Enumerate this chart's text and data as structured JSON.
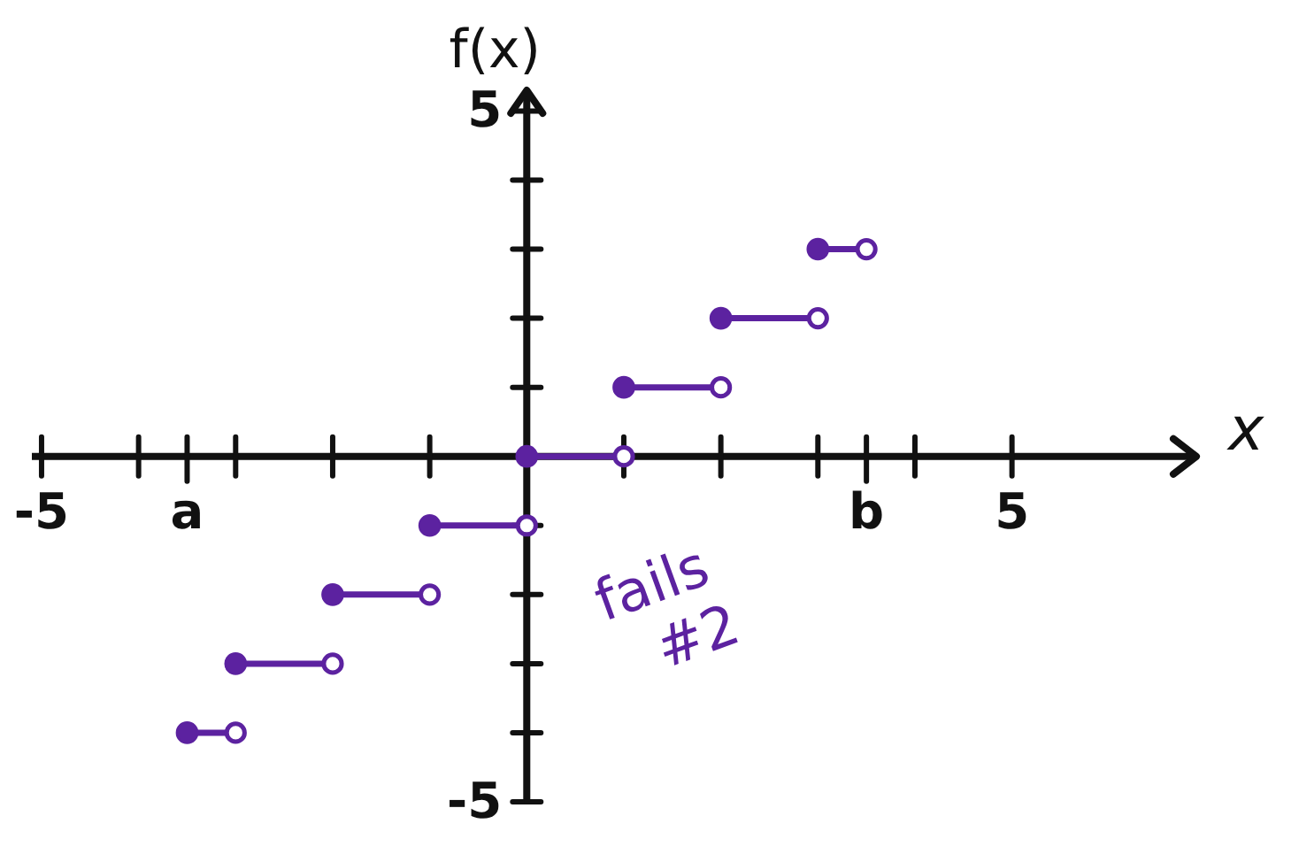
{
  "chart_data": {
    "type": "line",
    "xlabel": "x",
    "ylabel": "f(x)",
    "annotations": [
      "fails #2"
    ],
    "xlim": [
      -5.1,
      6.9
    ],
    "ylim": [
      -5,
      5.3
    ],
    "xticks": [
      -5,
      {
        "value": -4,
        "label": null
      },
      {
        "value": -3.5,
        "label": "a"
      },
      {
        "value": -3,
        "label": null
      },
      {
        "value": -2,
        "label": null
      },
      {
        "value": -1,
        "label": null
      },
      {
        "value": 1,
        "label": null
      },
      {
        "value": 2,
        "label": null
      },
      {
        "value": 3,
        "label": null
      },
      {
        "value": 3.5,
        "label": "b"
      },
      {
        "value": 4,
        "label": null
      },
      5
    ],
    "yticks": [
      -5,
      {
        "value": -4,
        "label": null
      },
      {
        "value": -3,
        "label": null
      },
      {
        "value": -2,
        "label": null
      },
      {
        "value": -1,
        "label": null
      },
      {
        "value": 1,
        "label": null
      },
      {
        "value": 2,
        "label": null
      },
      {
        "value": 3,
        "label": null
      },
      {
        "value": 4,
        "label": null
      },
      5
    ],
    "marker": "circle",
    "line_style": "solid",
    "series": [
      {
        "color": "#5c22a0",
        "x": [
          -3.5,
          -3
        ],
        "values": [
          -4,
          -4
        ]
      },
      {
        "color": "#5c22a0",
        "x": [
          -3,
          -2
        ],
        "values": [
          -3,
          -3
        ]
      },
      {
        "color": "#5c22a0",
        "x": [
          -2,
          -1
        ],
        "values": [
          -2,
          -2
        ]
      },
      {
        "color": "#5c22a0",
        "x": [
          -1,
          0
        ],
        "values": [
          -1,
          -1
        ]
      },
      {
        "color": "#5c22a0",
        "x": [
          0,
          1
        ],
        "values": [
          0,
          0
        ]
      },
      {
        "color": "#5c22a0",
        "x": [
          1,
          2
        ],
        "values": [
          1,
          1
        ]
      },
      {
        "color": "#5c22a0",
        "x": [
          2,
          3
        ],
        "values": [
          2,
          2
        ]
      },
      {
        "color": "#5c22a0",
        "x": [
          3,
          3.5
        ],
        "values": [
          3,
          3
        ]
      }
    ]
  }
}
